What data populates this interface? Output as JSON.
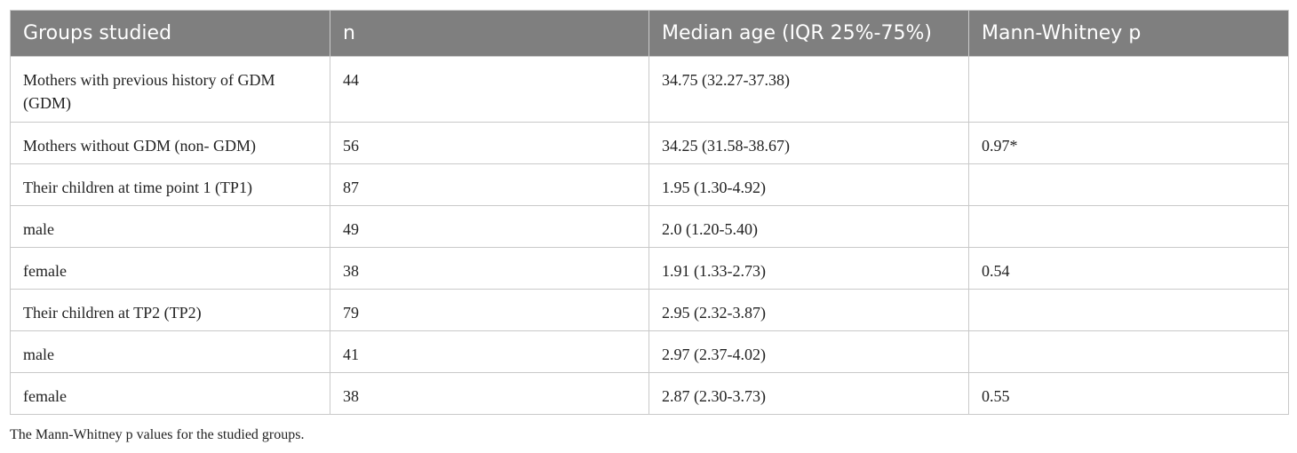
{
  "table": {
    "header": [
      "Groups studied",
      "n",
      "Median age (IQR 25%-75%)",
      "Mann-Whitney p"
    ],
    "rows": [
      [
        "Mothers with previous history of GDM (GDM)",
        "44",
        "34.75 (32.27-37.38)",
        null
      ],
      [
        "Mothers without GDM (non- GDM)",
        "56",
        "34.25 (31.58-38.67)",
        "0.97*"
      ],
      [
        "Their children at time point 1 (TP1)",
        "87",
        "1.95 (1.30-4.92)",
        null
      ],
      [
        "male",
        "49",
        "2.0 (1.20-5.40)",
        null
      ],
      [
        "female",
        "38",
        "1.91 (1.33-2.73)",
        "0.54"
      ],
      [
        "Their children at TP2 (TP2)",
        "79",
        "2.95 (2.32-3.87)",
        null
      ],
      [
        "male",
        "41",
        "2.97 (2.37-4.02)",
        null
      ],
      [
        "female",
        "38",
        "2.87 (2.30-3.73)",
        "0.55"
      ]
    ]
  },
  "footnote": "The Mann-Whitney p values for the studied groups."
}
